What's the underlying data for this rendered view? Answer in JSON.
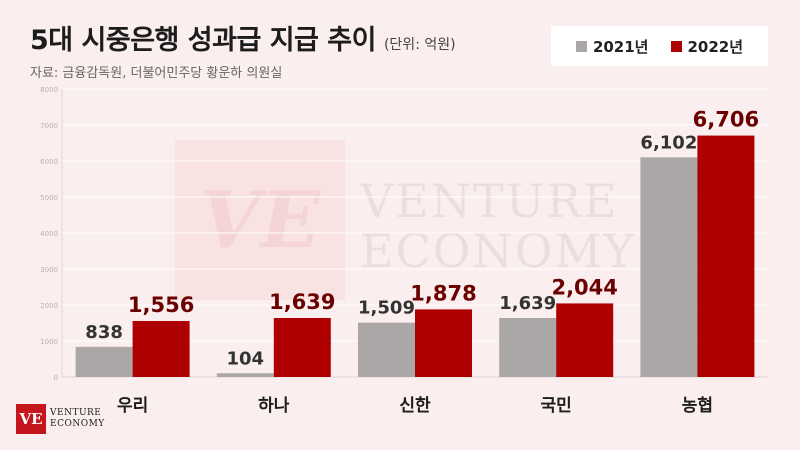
{
  "header": {
    "title": "5대 시중은행 성과급 지급 추이",
    "unit": "(단위: 억원)",
    "source": "자료: 금융감독원, 더불어민주당 황운하 의원실"
  },
  "legend": [
    {
      "label": "2021년",
      "color": "#aba7a7"
    },
    {
      "label": "2022년",
      "color": "#ae0000"
    }
  ],
  "watermark": {
    "monogram": "VE",
    "line1": "VENTURE",
    "line2": "ECONOMY"
  },
  "logo": {
    "monogram": "VE",
    "line1": "VENTURE",
    "line2": "ECONOMY"
  },
  "colors": {
    "series_2021": "#aba7a7",
    "series_2022": "#ae0000",
    "background": "#fbeeee"
  },
  "chart_data": {
    "type": "bar",
    "categories": [
      "우리",
      "하나",
      "신한",
      "국민",
      "농협"
    ],
    "series": [
      {
        "name": "2021년",
        "values": [
          838,
          104,
          1509,
          1639,
          6102
        ],
        "labels": [
          "838",
          "104",
          "1,509",
          "1,639",
          "6,102"
        ]
      },
      {
        "name": "2022년",
        "values": [
          1556,
          1639,
          1878,
          2044,
          6706
        ],
        "labels": [
          "1,556",
          "1,639",
          "1,878",
          "2,044",
          "6,706"
        ]
      }
    ],
    "ylim": [
      0,
      8000
    ],
    "yticks": [
      0,
      1000,
      2000,
      3000,
      4000,
      5000,
      6000,
      7000,
      8000
    ],
    "ylabel": "",
    "xlabel": "",
    "grid": true,
    "legend_position": "top-right"
  }
}
